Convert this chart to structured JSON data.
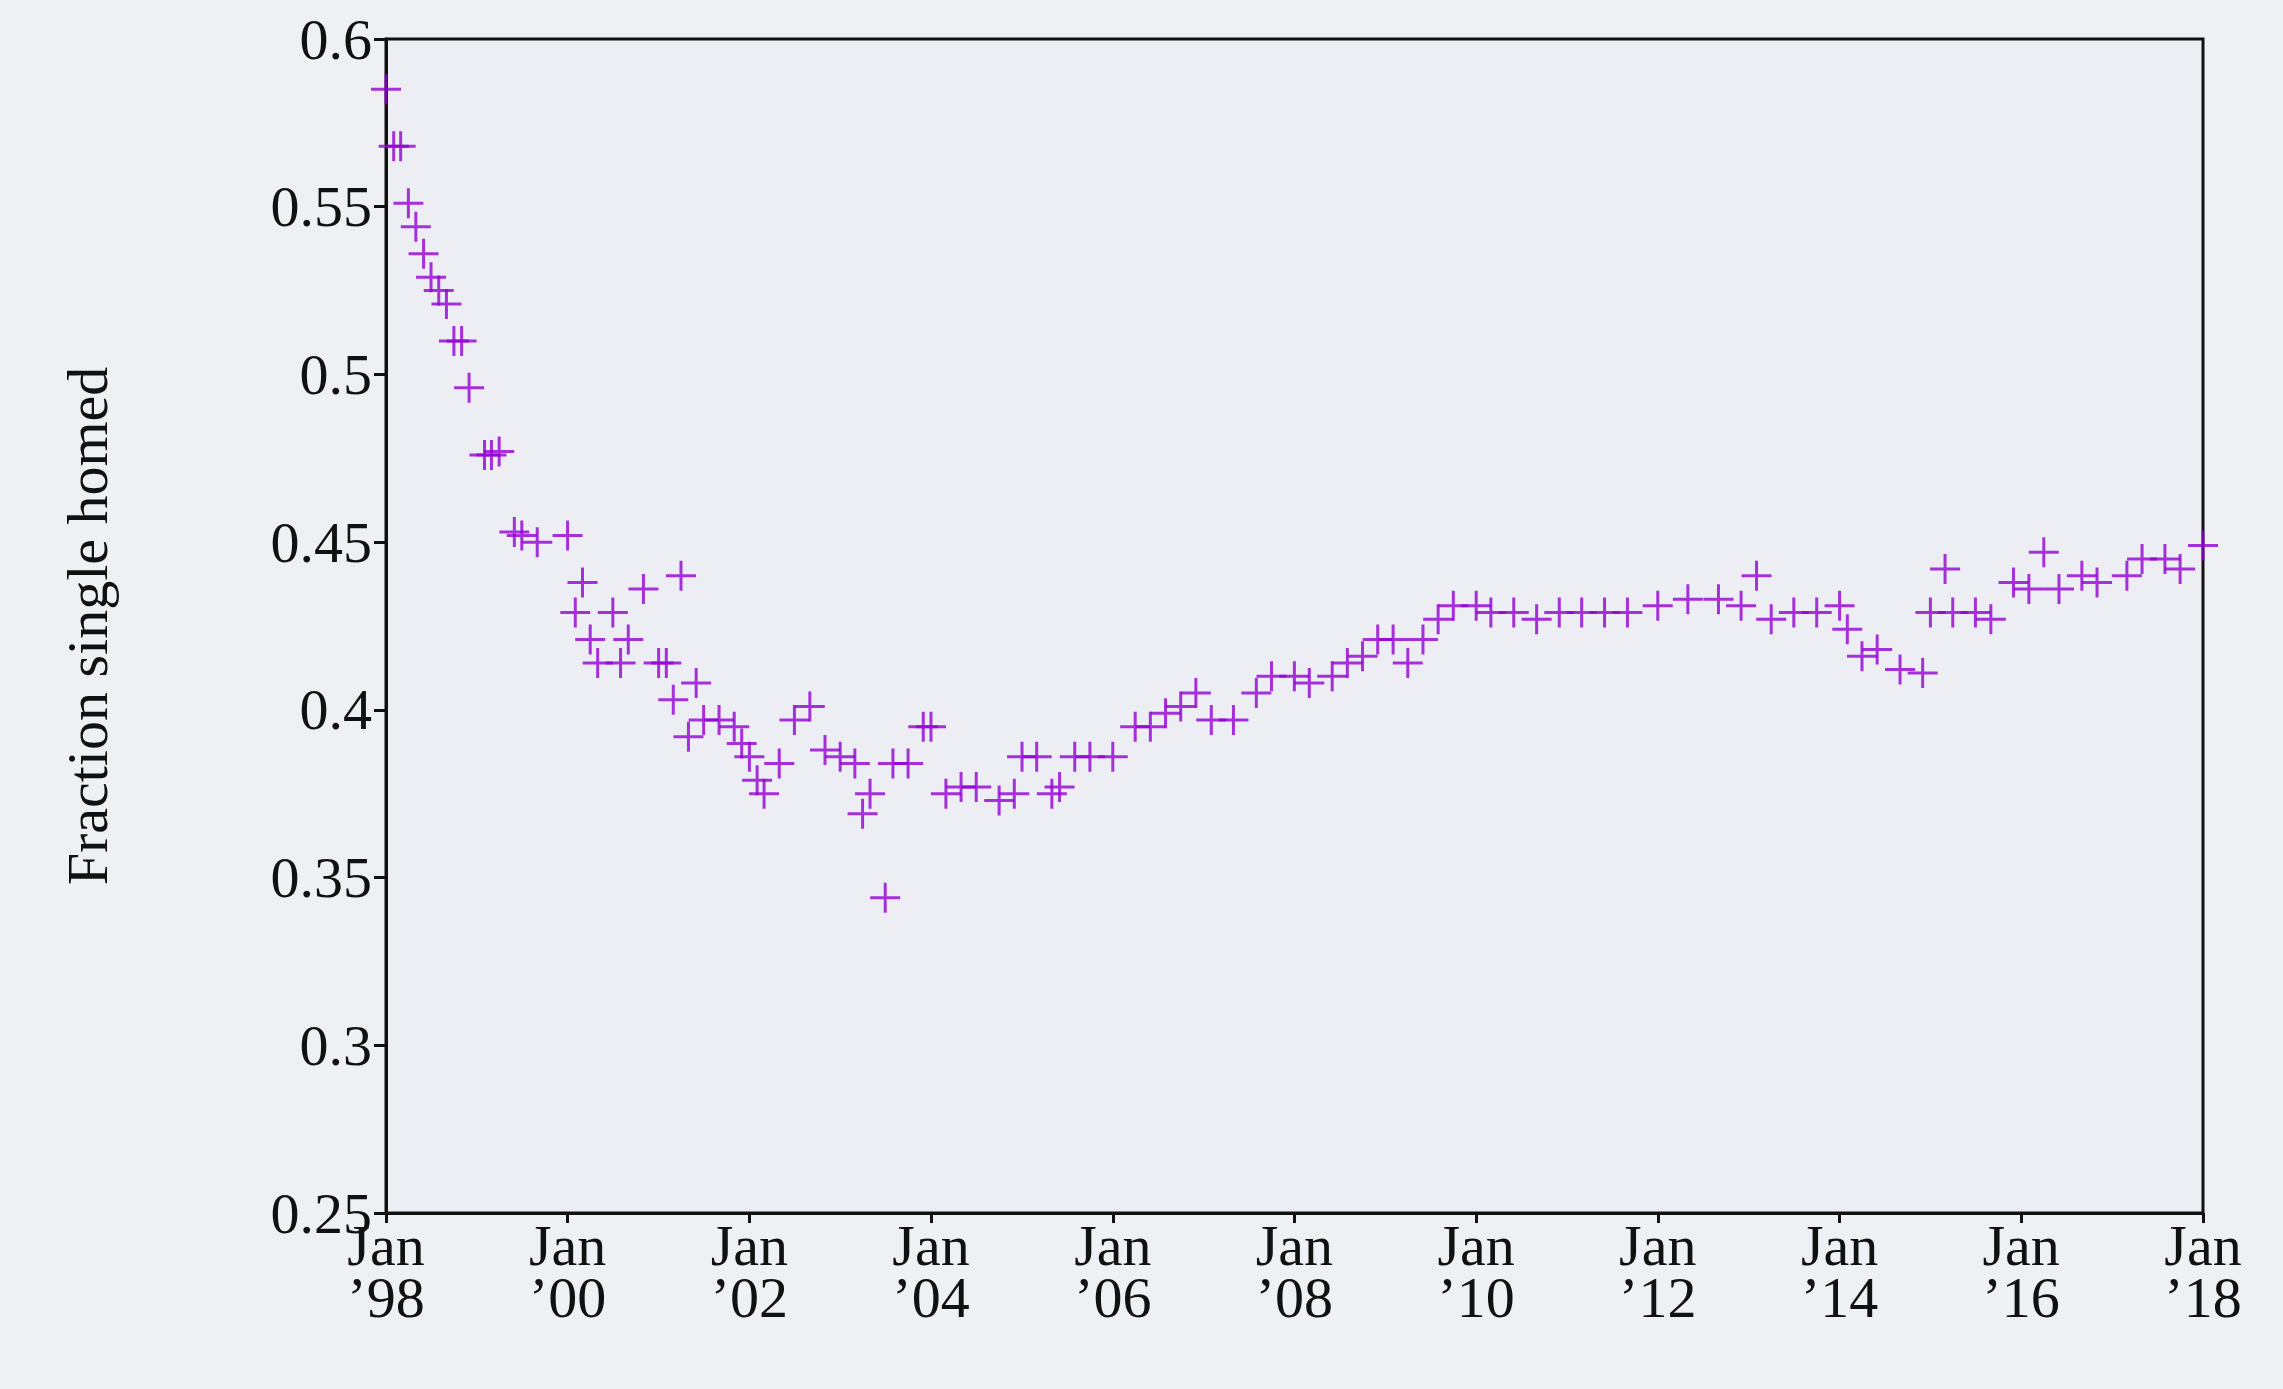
{
  "chart_data": {
    "type": "scatter",
    "ylabel": "Fraction single homed",
    "color": "#9400d3",
    "marker": "cross",
    "grid": false,
    "xlim": [
      "1998-01",
      "2018-01"
    ],
    "xticks": [
      {
        "value": "1998-01",
        "label": "Jan\n’98"
      },
      {
        "value": "2000-01",
        "label": "Jan\n’00"
      },
      {
        "value": "2002-01",
        "label": "Jan\n’02"
      },
      {
        "value": "2004-01",
        "label": "Jan\n’04"
      },
      {
        "value": "2006-01",
        "label": "Jan\n’06"
      },
      {
        "value": "2008-01",
        "label": "Jan\n’08"
      },
      {
        "value": "2010-01",
        "label": "Jan\n’10"
      },
      {
        "value": "2012-01",
        "label": "Jan\n’12"
      },
      {
        "value": "2014-01",
        "label": "Jan\n’14"
      },
      {
        "value": "2016-01",
        "label": "Jan\n’16"
      },
      {
        "value": "2018-01",
        "label": "Jan\n’18"
      }
    ],
    "ylim": [
      0.25,
      0.6
    ],
    "yticks": [
      0.25,
      0.3,
      0.35,
      0.4,
      0.45,
      0.5,
      0.55,
      0.6
    ],
    "x": [
      "1998-01",
      "1998-02",
      "1998-03",
      "1998-04",
      "1998-05",
      "1998-06",
      "1998-07",
      "1998-08",
      "1998-09",
      "1998-10",
      "1998-11",
      "1998-12",
      "1999-02",
      "1999-03",
      "1999-04",
      "1999-06",
      "1999-07",
      "1999-09",
      "2000-01",
      "2000-02",
      "2000-03",
      "2000-04",
      "2000-05",
      "2000-07",
      "2000-08",
      "2000-09",
      "2000-11",
      "2001-01",
      "2001-02",
      "2001-03",
      "2001-04",
      "2001-05",
      "2001-06",
      "2001-07",
      "2001-09",
      "2001-11",
      "2001-12",
      "2002-01",
      "2002-02",
      "2002-03",
      "2002-05",
      "2002-07",
      "2002-09",
      "2002-11",
      "2003-01",
      "2003-03",
      "2003-04",
      "2003-05",
      "2003-07",
      "2003-08",
      "2003-10",
      "2003-12",
      "2004-01",
      "2004-03",
      "2004-05",
      "2004-07",
      "2004-10",
      "2004-12",
      "2005-01",
      "2005-03",
      "2005-05",
      "2005-06",
      "2005-08",
      "2005-10",
      "2006-01",
      "2006-04",
      "2006-06",
      "2006-08",
      "2006-10",
      "2006-12",
      "2007-02",
      "2007-05",
      "2007-08",
      "2007-10",
      "2008-01",
      "2008-03",
      "2008-06",
      "2008-08",
      "2008-10",
      "2008-12",
      "2009-02",
      "2009-04",
      "2009-06",
      "2009-08",
      "2009-10",
      "2010-01",
      "2010-03",
      "2010-06",
      "2010-09",
      "2010-12",
      "2011-03",
      "2011-06",
      "2011-09",
      "2012-01",
      "2012-05",
      "2012-09",
      "2012-12",
      "2013-02",
      "2013-04",
      "2013-07",
      "2013-10",
      "2014-01",
      "2014-02",
      "2014-04",
      "2014-06",
      "2014-09",
      "2014-12",
      "2015-01",
      "2015-03",
      "2015-04",
      "2015-07",
      "2015-09",
      "2015-12",
      "2016-02",
      "2016-04",
      "2016-06",
      "2016-09",
      "2016-11",
      "2017-03",
      "2017-05",
      "2017-08",
      "2017-10",
      "2018-01"
    ],
    "values": [
      0.585,
      0.568,
      0.568,
      0.551,
      0.544,
      0.536,
      0.529,
      0.525,
      0.521,
      0.51,
      0.51,
      0.496,
      0.476,
      0.476,
      0.477,
      0.453,
      0.452,
      0.45,
      0.452,
      0.429,
      0.438,
      0.421,
      0.414,
      0.429,
      0.414,
      0.421,
      0.436,
      0.414,
      0.414,
      0.403,
      0.44,
      0.392,
      0.408,
      0.397,
      0.397,
      0.395,
      0.39,
      0.386,
      0.379,
      0.375,
      0.384,
      0.397,
      0.401,
      0.388,
      0.386,
      0.384,
      0.369,
      0.375,
      0.344,
      0.384,
      0.384,
      0.395,
      0.395,
      0.375,
      0.377,
      0.377,
      0.373,
      0.375,
      0.386,
      0.386,
      0.375,
      0.377,
      0.386,
      0.386,
      0.386,
      0.395,
      0.395,
      0.399,
      0.401,
      0.405,
      0.397,
      0.397,
      0.405,
      0.41,
      0.41,
      0.408,
      0.41,
      0.414,
      0.416,
      0.421,
      0.421,
      0.414,
      0.421,
      0.427,
      0.431,
      0.431,
      0.429,
      0.429,
      0.427,
      0.429,
      0.429,
      0.429,
      0.429,
      0.431,
      0.433,
      0.433,
      0.431,
      0.44,
      0.427,
      0.429,
      0.429,
      0.431,
      0.424,
      0.416,
      0.418,
      0.412,
      0.411,
      0.429,
      0.442,
      0.429,
      0.429,
      0.427,
      0.438,
      0.436,
      0.447,
      0.436,
      0.44,
      0.438,
      0.44,
      0.445,
      0.445,
      0.442,
      0.449
    ]
  }
}
